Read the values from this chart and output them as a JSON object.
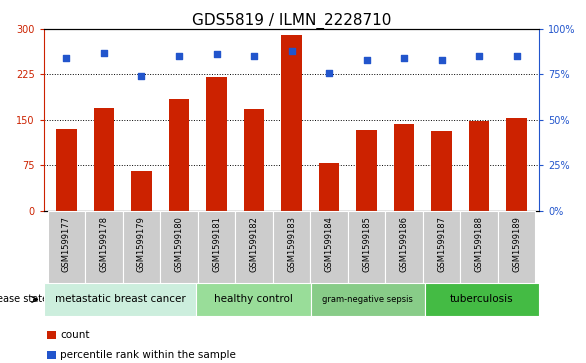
{
  "title": "GDS5819 / ILMN_2228710",
  "samples": [
    "GSM1599177",
    "GSM1599178",
    "GSM1599179",
    "GSM1599180",
    "GSM1599181",
    "GSM1599182",
    "GSM1599183",
    "GSM1599184",
    "GSM1599185",
    "GSM1599186",
    "GSM1599187",
    "GSM1599188",
    "GSM1599189"
  ],
  "counts": [
    135,
    170,
    65,
    185,
    220,
    168,
    290,
    78,
    133,
    143,
    132,
    148,
    153
  ],
  "percentiles": [
    84,
    87,
    74,
    85,
    86,
    85,
    88,
    76,
    83,
    84,
    83,
    85,
    85
  ],
  "bar_color": "#cc2200",
  "dot_color": "#2255cc",
  "ylim_left": [
    0,
    300
  ],
  "ylim_right": [
    0,
    100
  ],
  "yticks_left": [
    0,
    75,
    150,
    225,
    300
  ],
  "yticks_right": [
    0,
    25,
    50,
    75,
    100
  ],
  "ytick_labels_right": [
    "0%",
    "25%",
    "50%",
    "75%",
    "100%"
  ],
  "groups": [
    {
      "label": "metastatic breast cancer",
      "start": 0,
      "end": 4,
      "color": "#cceedd"
    },
    {
      "label": "healthy control",
      "start": 4,
      "end": 7,
      "color": "#99dd99"
    },
    {
      "label": "gram-negative sepsis",
      "start": 7,
      "end": 10,
      "color": "#88cc88"
    },
    {
      "label": "tuberculosis",
      "start": 10,
      "end": 13,
      "color": "#44bb44"
    }
  ],
  "disease_state_label": "disease state",
  "legend_count_label": "count",
  "legend_pct_label": "percentile rank within the sample",
  "bar_color_red": "#cc2200",
  "dot_color_blue": "#2255cc",
  "tick_label_color_left": "#cc2200",
  "tick_label_color_right": "#2255cc",
  "title_fontsize": 11,
  "tick_label_fontsize": 7,
  "sample_label_fontsize": 6,
  "group_label_fontsize": 7.5,
  "legend_fontsize": 7.5,
  "disease_state_fontsize": 7
}
